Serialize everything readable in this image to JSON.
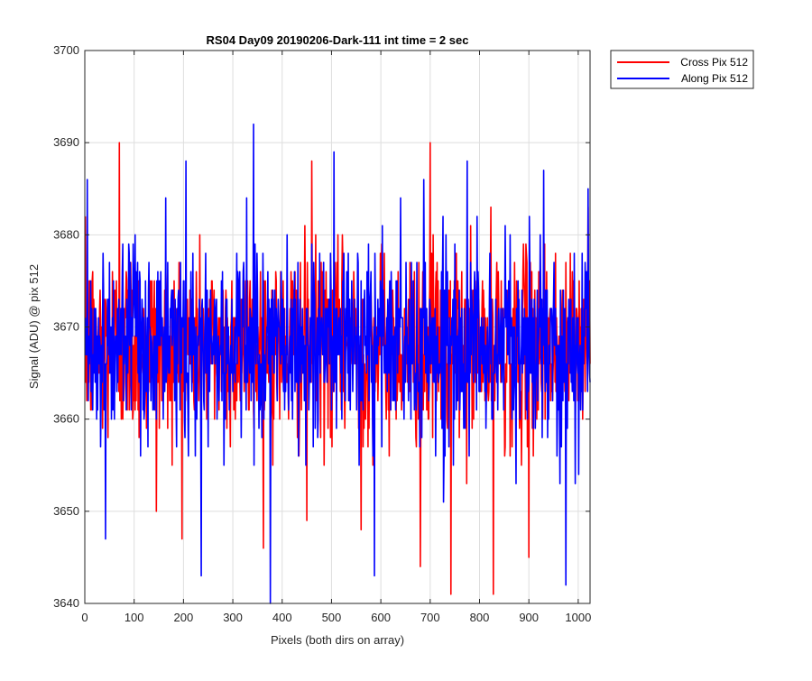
{
  "chart_data": {
    "type": "line",
    "title": "RS04 Day09 20190206-Dark-111 int time = 2 sec",
    "xlabel": "Pixels (both dirs on array)",
    "ylabel": "Signal (ADU) @ pix 512",
    "xlim": [
      0,
      1024
    ],
    "ylim": [
      3640,
      3700
    ],
    "xticks": [
      0,
      100,
      200,
      300,
      400,
      500,
      600,
      700,
      800,
      900,
      1000
    ],
    "yticks": [
      3640,
      3650,
      3660,
      3670,
      3680,
      3690,
      3700
    ],
    "xtick_labels": [
      "0",
      "100",
      "200",
      "300",
      "400",
      "500",
      "600",
      "700",
      "800",
      "900",
      "1000"
    ],
    "ytick_labels": [
      "3640",
      "3650",
      "3660",
      "3670",
      "3680",
      "3690",
      "3700"
    ],
    "grid": true,
    "legend_position": "outside-top-right",
    "series": [
      {
        "name": "Cross Pix 512",
        "color": "#ff0000",
        "x_start": 1,
        "x_step": 1,
        "y_mean": 3668,
        "y_noise_sd": 5.2,
        "seed": 12345,
        "spikes": [
          [
            70,
            3690
          ],
          [
            700,
            3690
          ],
          [
            742,
            3641
          ],
          [
            828,
            3641
          ],
          [
            680,
            3644
          ],
          [
            560,
            3648
          ],
          [
            145,
            3650
          ],
          [
            900,
            3645
          ],
          [
            450,
            3649
          ],
          [
            460,
            3688
          ],
          [
            1020,
            3683
          ]
        ]
      },
      {
        "name": "Along Pix 512",
        "color": "#0000ff",
        "x_start": 1,
        "x_step": 1,
        "y_mean": 3668,
        "y_noise_sd": 5.2,
        "seed": 67890,
        "spikes": [
          [
            5,
            3686
          ],
          [
            42,
            3647
          ],
          [
            205,
            3688
          ],
          [
            236,
            3643
          ],
          [
            342,
            3692
          ],
          [
            376,
            3640
          ],
          [
            505,
            3689
          ],
          [
            587,
            3643
          ],
          [
            775,
            3688
          ],
          [
            930,
            3687
          ],
          [
            975,
            3642
          ],
          [
            640,
            3684
          ],
          [
            1020,
            3685
          ]
        ]
      }
    ]
  }
}
